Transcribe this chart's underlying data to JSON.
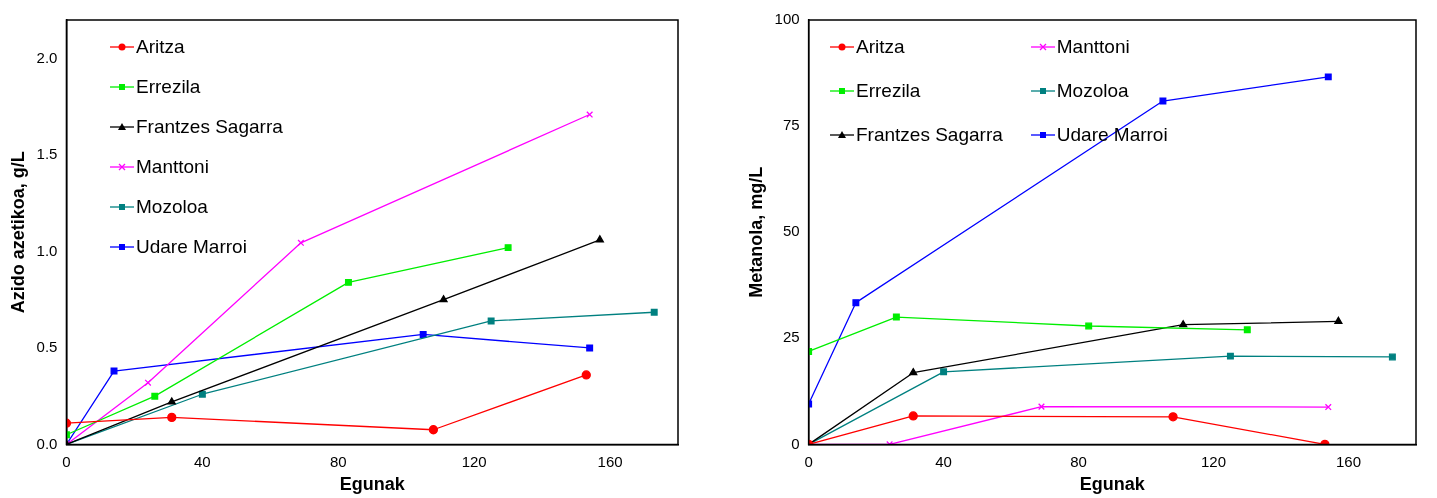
{
  "chart_data": [
    {
      "type": "line",
      "xlabel": "Egunak",
      "ylabel": "Azido azetikoa, g/L",
      "xlim": [
        0,
        180
      ],
      "xticks": [
        0,
        40,
        80,
        120,
        160
      ],
      "ylim": [
        0,
        2.2
      ],
      "yticks": [
        {
          "value": 0,
          "label": "0.0"
        },
        {
          "value": 0.5,
          "label": "0.5"
        },
        {
          "value": 1,
          "label": "1.0"
        },
        {
          "value": 1.5,
          "label": "1.5"
        },
        {
          "value": 2,
          "label": "2.0"
        }
      ],
      "grid": false,
      "legend": "top left",
      "line_style": "solid",
      "series": [
        {
          "name": "Aritza",
          "color": "#ff0000",
          "marker": "circle",
          "x": [
            0,
            31,
            108,
            153
          ],
          "values": [
            0.11,
            0.14,
            0.076,
            0.36
          ]
        },
        {
          "name": "Errezila",
          "color": "#00ee00",
          "marker": "square",
          "x": [
            0,
            26,
            83,
            130
          ],
          "values": [
            0.05,
            0.25,
            0.84,
            1.02
          ]
        },
        {
          "name": "Frantzes Sagarra",
          "color": "#000000",
          "marker": "triangle",
          "x": [
            0,
            31,
            111,
            157
          ],
          "values": [
            0,
            0.22,
            0.75,
            1.06
          ]
        },
        {
          "name": "Manttoni",
          "color": "#ff00ff",
          "marker": "cross",
          "x": [
            0,
            24,
            69,
            154
          ],
          "values": [
            0,
            0.32,
            1.045,
            1.71
          ]
        },
        {
          "name": "Mozoloa",
          "color": "#008080",
          "marker": "square",
          "x": [
            0,
            40,
            125,
            173
          ],
          "values": [
            0,
            0.26,
            0.64,
            0.685
          ]
        },
        {
          "name": "Udare Marroi",
          "color": "#0000ff",
          "marker": "square",
          "x": [
            0,
            14,
            105,
            154
          ],
          "values": [
            0,
            0.38,
            0.57,
            0.5
          ]
        }
      ]
    },
    {
      "type": "line",
      "xlabel": "Egunak",
      "ylabel": "Metanola, mg/L",
      "xlim": [
        0,
        180
      ],
      "xticks": [
        0,
        40,
        80,
        120,
        160
      ],
      "ylim": [
        0,
        100
      ],
      "yticks": [
        0,
        25,
        50,
        75,
        100
      ],
      "grid": false,
      "legend": "top left",
      "line_style": "solid",
      "series": [
        {
          "name": "Aritza",
          "color": "#ff0000",
          "marker": "circle",
          "x": [
            0,
            31,
            108,
            153
          ],
          "values": [
            0,
            6.7,
            6.5,
            0
          ]
        },
        {
          "name": "Errezila",
          "color": "#00ee00",
          "marker": "square",
          "x": [
            0,
            26,
            83,
            130
          ],
          "values": [
            21.9,
            30,
            27.9,
            27
          ]
        },
        {
          "name": "Frantzes Sagarra",
          "color": "#000000",
          "marker": "triangle",
          "x": [
            0,
            31,
            111,
            157
          ],
          "values": [
            0,
            16.9,
            28.2,
            29
          ]
        },
        {
          "name": "Manttoni",
          "color": "#ff00ff",
          "marker": "cross",
          "x": [
            0,
            24,
            69,
            154
          ],
          "values": [
            0,
            0,
            8.9,
            8.8
          ]
        },
        {
          "name": "Mozoloa",
          "color": "#008080",
          "marker": "square",
          "x": [
            0,
            40,
            125,
            173
          ],
          "values": [
            0,
            17.1,
            20.8,
            20.6
          ]
        },
        {
          "name": "Udare Marroi",
          "color": "#0000ff",
          "marker": "square",
          "x": [
            0,
            14,
            105,
            154
          ],
          "values": [
            9.5,
            33.4,
            80.9,
            86.6
          ]
        }
      ]
    }
  ]
}
